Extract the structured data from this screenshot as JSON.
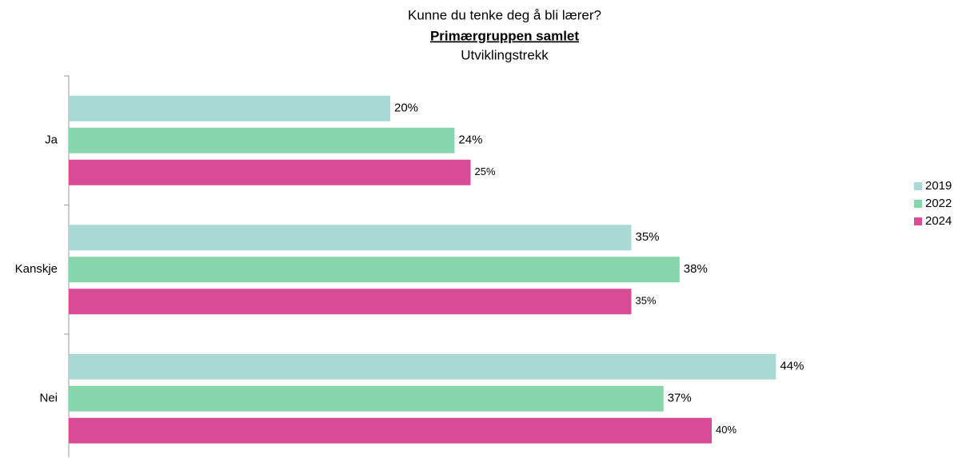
{
  "chart_data": {
    "type": "bar",
    "orientation": "horizontal",
    "title": "Kunne du tenke deg å bli lærer?",
    "subtitle": "Primærgruppen samlet",
    "subtitle2": "Utviklingstrekk",
    "categories": [
      "Ja",
      "Kanskje",
      "Nei"
    ],
    "series": [
      {
        "name": "2019",
        "color": "#a8d9d4",
        "values": [
          20,
          35,
          44
        ],
        "value_labels": [
          "20%",
          "35%",
          "44%"
        ]
      },
      {
        "name": "2022",
        "color": "#86d5ab",
        "values": [
          24,
          38,
          37
        ],
        "value_labels": [
          "24%",
          "38%",
          "37%"
        ]
      },
      {
        "name": "2024",
        "color": "#d84b96",
        "values": [
          25,
          35,
          40
        ],
        "value_labels": [
          "25%",
          "35%",
          "40%"
        ]
      }
    ],
    "legend": "right"
  }
}
